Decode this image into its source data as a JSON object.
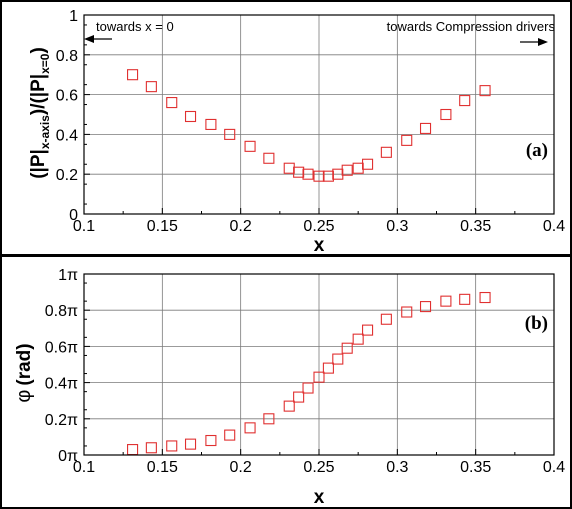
{
  "chart_data": [
    {
      "type": "scatter",
      "panel_label": "(a)",
      "xlabel": "x",
      "ylabel_main": "(|P|",
      "ylabel_sub1": "x-axis",
      "ylabel_mid": ")/(|P|",
      "ylabel_sub2": "x=0",
      "ylabel_end": ")",
      "xlim": [
        0.1,
        0.4
      ],
      "ylim": [
        0,
        1
      ],
      "xticks": [
        0.1,
        0.15,
        0.2,
        0.25,
        0.3,
        0.35,
        0.4
      ],
      "xtick_labels": [
        "0.1",
        "0.15",
        "0.2",
        "0.25",
        "0.3",
        "0.35",
        "0.4"
      ],
      "yticks": [
        0,
        0.2,
        0.4,
        0.6,
        0.8,
        1
      ],
      "ytick_labels": [
        "0",
        "0.2",
        "0.4",
        "0.6",
        "0.8",
        "1"
      ],
      "grid": true,
      "annotations": {
        "left": "towards x = 0",
        "right": "towards Compression drivers"
      },
      "marker_color": "#e03030",
      "x": [
        0.131,
        0.143,
        0.156,
        0.168,
        0.181,
        0.193,
        0.206,
        0.218,
        0.231,
        0.237,
        0.243,
        0.25,
        0.256,
        0.262,
        0.268,
        0.275,
        0.281,
        0.293,
        0.306,
        0.318,
        0.331,
        0.343,
        0.356
      ],
      "y": [
        0.7,
        0.64,
        0.56,
        0.49,
        0.45,
        0.4,
        0.34,
        0.28,
        0.23,
        0.21,
        0.2,
        0.19,
        0.19,
        0.2,
        0.22,
        0.23,
        0.25,
        0.31,
        0.37,
        0.43,
        0.5,
        0.57,
        0.62
      ]
    },
    {
      "type": "scatter",
      "panel_label": "(b)",
      "xlabel": "x",
      "ylabel_symbol": "φ",
      "ylabel_unit": "(rad)",
      "xlim": [
        0.1,
        0.4
      ],
      "ylim": [
        0,
        1
      ],
      "yunit": "π",
      "xticks": [
        0.1,
        0.15,
        0.2,
        0.25,
        0.3,
        0.35,
        0.4
      ],
      "xtick_labels": [
        "0.1",
        "0.15",
        "0.2",
        "0.25",
        "0.3",
        "0.35",
        "0.4"
      ],
      "yticks": [
        0,
        0.2,
        0.4,
        0.6,
        0.8,
        1
      ],
      "ytick_labels": [
        "0π",
        "0.2π",
        "0.4π",
        "0.6π",
        "0.8π",
        "1π"
      ],
      "grid": true,
      "marker_color": "#e03030",
      "x": [
        0.131,
        0.143,
        0.156,
        0.168,
        0.181,
        0.193,
        0.206,
        0.218,
        0.231,
        0.237,
        0.243,
        0.25,
        0.256,
        0.262,
        0.268,
        0.275,
        0.281,
        0.293,
        0.306,
        0.318,
        0.331,
        0.343,
        0.356
      ],
      "y": [
        0.03,
        0.04,
        0.05,
        0.06,
        0.08,
        0.11,
        0.15,
        0.2,
        0.27,
        0.32,
        0.37,
        0.43,
        0.48,
        0.53,
        0.59,
        0.64,
        0.69,
        0.75,
        0.79,
        0.82,
        0.85,
        0.86,
        0.87
      ]
    }
  ]
}
